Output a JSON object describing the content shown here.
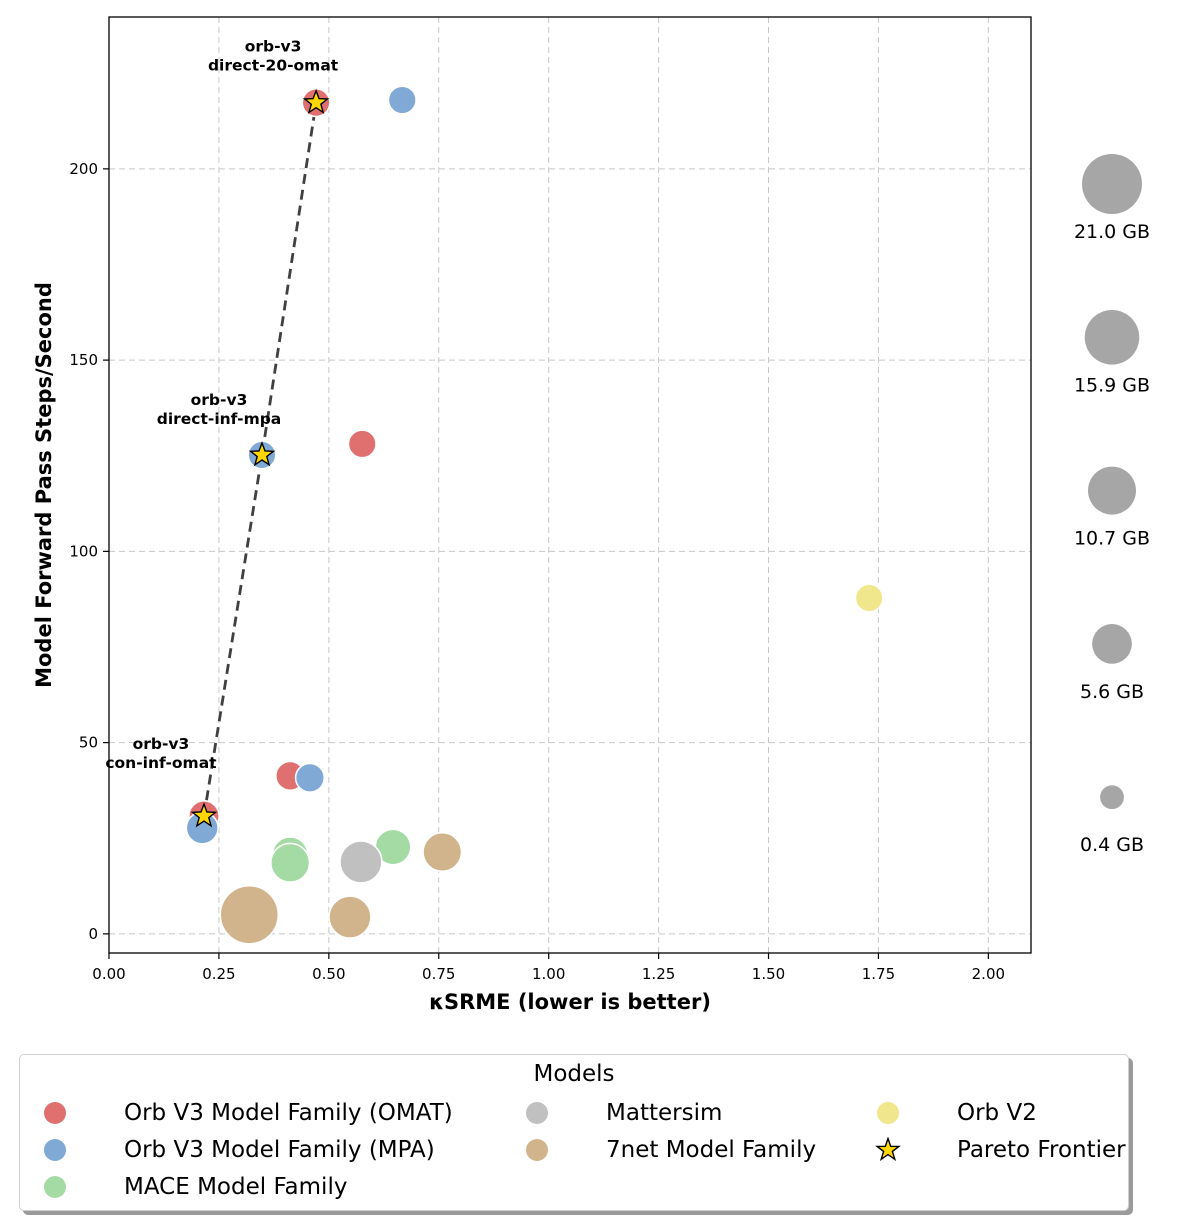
{
  "chart_data": {
    "type": "scatter",
    "title": "",
    "xlabel": "κSRME (lower is better)",
    "ylabel": "Model Forward Pass Steps/Second",
    "xlim": [
      0.0,
      2.097
    ],
    "ylim": [
      -5,
      239.7
    ],
    "xticks": [
      0.0,
      0.25,
      0.5,
      0.75,
      1.0,
      1.25,
      1.5,
      1.75,
      2.0
    ],
    "xtick_labels": [
      "0.00",
      "0.25",
      "0.50",
      "0.75",
      "1.00",
      "1.25",
      "1.50",
      "1.75",
      "2.00"
    ],
    "yticks": [
      0,
      50,
      100,
      150,
      200
    ],
    "ytick_labels": [
      "0",
      "50",
      "100",
      "150",
      "200"
    ],
    "grid": true,
    "size_encoding": "memory (GB)",
    "series": [
      {
        "name": "Orb V3 Model Family (OMAT)",
        "color": "#e07070",
        "points": [
          {
            "x": 0.471,
            "y": 217.3,
            "size_gb": 1.2
          },
          {
            "x": 0.576,
            "y": 128.1,
            "size_gb": 1.2
          },
          {
            "x": 0.412,
            "y": 41.3,
            "size_gb": 1.5
          },
          {
            "x": 0.216,
            "y": 30.8,
            "size_gb": 2.0
          }
        ]
      },
      {
        "name": "Orb V3 Model Family (MPA)",
        "color": "#80a9d6",
        "points": [
          {
            "x": 0.667,
            "y": 218.0,
            "size_gb": 1.2
          },
          {
            "x": 0.348,
            "y": 125.2,
            "size_gb": 1.2
          },
          {
            "x": 0.457,
            "y": 40.8,
            "size_gb": 1.5
          },
          {
            "x": 0.212,
            "y": 27.7,
            "size_gb": 2.5
          }
        ]
      },
      {
        "name": "MACE Model Family",
        "color": "#a4dba4",
        "points": [
          {
            "x": 0.412,
            "y": 20.7,
            "size_gb": 4.0
          },
          {
            "x": 0.412,
            "y": 18.6,
            "size_gb": 5.6
          },
          {
            "x": 0.646,
            "y": 22.7,
            "size_gb": 4.0
          }
        ]
      },
      {
        "name": "Mattersim",
        "color": "#c0c0c0",
        "points": [
          {
            "x": 0.573,
            "y": 18.8,
            "size_gb": 7.5
          }
        ]
      },
      {
        "name": "7net Model Family",
        "color": "#d2b48c",
        "points": [
          {
            "x": 0.758,
            "y": 21.4,
            "size_gb": 5.5
          },
          {
            "x": 0.319,
            "y": 5.0,
            "size_gb": 21.0
          },
          {
            "x": 0.548,
            "y": 4.4,
            "size_gb": 7.5
          }
        ]
      },
      {
        "name": "Orb V2",
        "color": "#f0e68c",
        "points": [
          {
            "x": 1.729,
            "y": 87.8,
            "size_gb": 1.2
          }
        ]
      }
    ],
    "pareto_frontier": {
      "name": "Pareto Frontier",
      "marker_color": "#ffd700",
      "line_color": "#404040",
      "points": [
        {
          "x": 0.216,
          "y": 30.8,
          "label_line1": "orb-v3",
          "label_line2": "con-inf-omat"
        },
        {
          "x": 0.348,
          "y": 125.2,
          "label_line1": "orb-v3",
          "label_line2": "direct-inf-mpa"
        },
        {
          "x": 0.471,
          "y": 217.3,
          "label_line1": "orb-v3",
          "label_line2": "direct-20-omat"
        }
      ]
    },
    "size_legend": [
      {
        "gb": 21.0,
        "label": "21.0 GB"
      },
      {
        "gb": 15.9,
        "label": "15.9 GB"
      },
      {
        "gb": 10.7,
        "label": "10.7 GB"
      },
      {
        "gb": 5.6,
        "label": "5.6 GB"
      },
      {
        "gb": 0.4,
        "label": "0.4 GB"
      }
    ],
    "legend": {
      "title": "Models",
      "placement": "bottom",
      "items": [
        {
          "label": "Orb V3 Model Family (OMAT)",
          "color": "#e07070",
          "marker": "circle"
        },
        {
          "label": "Orb V3 Model Family (MPA)",
          "color": "#80a9d6",
          "marker": "circle"
        },
        {
          "label": "MACE Model Family",
          "color": "#a4dba4",
          "marker": "circle"
        },
        {
          "label": "Mattersim",
          "color": "#c0c0c0",
          "marker": "circle"
        },
        {
          "label": "7net Model Family",
          "color": "#d2b48c",
          "marker": "circle"
        },
        {
          "label": "Orb V2",
          "color": "#f0e68c",
          "marker": "circle"
        },
        {
          "label": "Pareto Frontier",
          "color": "#ffd700",
          "marker": "star"
        }
      ]
    }
  }
}
